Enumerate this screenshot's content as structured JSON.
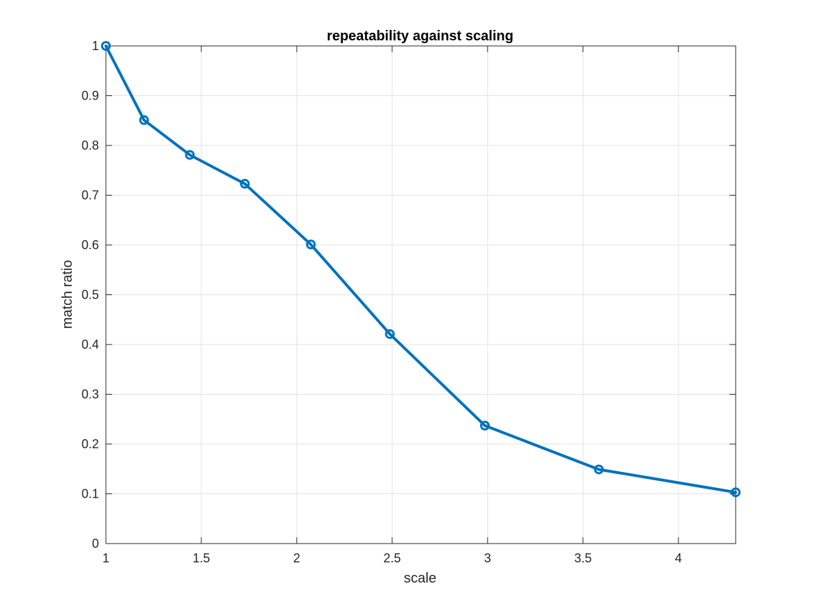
{
  "chart_data": {
    "type": "line",
    "title": "repeatability against scaling",
    "xlabel": "scale",
    "ylabel": "match ratio",
    "xlim": [
      1,
      4.3
    ],
    "ylim": [
      0,
      1
    ],
    "xticks": [
      1,
      1.5,
      2,
      2.5,
      3,
      3.5,
      4
    ],
    "xtick_labels": [
      "1",
      "1.5",
      "2",
      "2.5",
      "3",
      "3.5",
      "4"
    ],
    "yticks": [
      0,
      0.1,
      0.2,
      0.3,
      0.4,
      0.5,
      0.6,
      0.7,
      0.8,
      0.9,
      1
    ],
    "ytick_labels": [
      "0",
      "0.1",
      "0.2",
      "0.3",
      "0.4",
      "0.5",
      "0.6",
      "0.7",
      "0.8",
      "0.9",
      "1"
    ],
    "grid": true,
    "series": [
      {
        "color": "#0072BD",
        "marker": "o",
        "x": [
          1.0,
          1.2,
          1.44,
          1.728,
          2.074,
          2.488,
          2.986,
          3.583,
          4.3
        ],
        "y": [
          1.0,
          0.851,
          0.781,
          0.723,
          0.601,
          0.421,
          0.237,
          0.149,
          0.103
        ]
      }
    ]
  }
}
